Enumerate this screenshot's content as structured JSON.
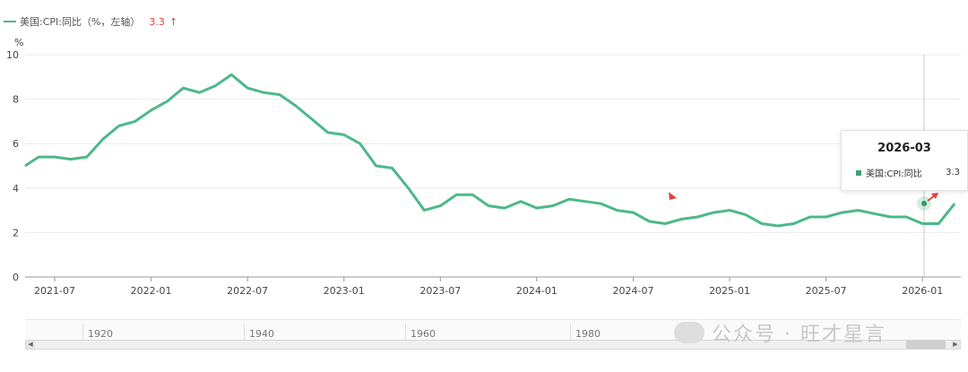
{
  "legend": {
    "series_name": "美国:CPI:同比（%，左轴）",
    "last_value": "3.3",
    "trend_symbol": "↑"
  },
  "unit_label": "%",
  "tooltip": {
    "date": "2026-03",
    "series_name": "美国:CPI:同比",
    "value": "3.3"
  },
  "navigator": {
    "labels": [
      "1920",
      "1940",
      "1960",
      "1980"
    ]
  },
  "watermark": "公众号 · 旺才星言",
  "colors": {
    "line": "#4cb88a",
    "up_arrow": "#e0443e",
    "grid": "#ebebeb"
  },
  "chart_data": {
    "type": "line",
    "ylim": [
      0,
      10
    ],
    "y_ticks": [
      0,
      2,
      4,
      6,
      8,
      10
    ],
    "x_tick_labels": [
      "2021-07",
      "2022-01",
      "2022-07",
      "2023-01",
      "2023-07",
      "2024-01",
      "2024-07",
      "2025-01",
      "2025-07",
      "2026-01"
    ],
    "series": [
      {
        "name": "美国:CPI:同比",
        "x": [
          "2021-05",
          "2021-06",
          "2021-07",
          "2021-08",
          "2021-09",
          "2021-10",
          "2021-11",
          "2021-12",
          "2022-01",
          "2022-02",
          "2022-03",
          "2022-04",
          "2022-05",
          "2022-06",
          "2022-07",
          "2022-08",
          "2022-09",
          "2022-10",
          "2022-11",
          "2022-12",
          "2023-01",
          "2023-02",
          "2023-03",
          "2023-04",
          "2023-05",
          "2023-06",
          "2023-07",
          "2023-08",
          "2023-09",
          "2023-10",
          "2023-11",
          "2023-12",
          "2024-01",
          "2024-02",
          "2024-03",
          "2024-04",
          "2024-05",
          "2024-06",
          "2024-07",
          "2024-08",
          "2024-09",
          "2024-10",
          "2024-11",
          "2024-12",
          "2025-01",
          "2025-02",
          "2025-03",
          "2025-04",
          "2025-05",
          "2025-06",
          "2025-07",
          "2025-08",
          "2025-09",
          "2025-10",
          "2025-11",
          "2025-12",
          "2026-01",
          "2026-02",
          "2026-03"
        ],
        "values": [
          5.0,
          5.4,
          5.4,
          5.3,
          5.4,
          6.2,
          6.8,
          7.0,
          7.5,
          7.9,
          8.5,
          8.3,
          8.6,
          9.1,
          8.5,
          8.3,
          8.2,
          7.7,
          7.1,
          6.5,
          6.4,
          6.0,
          5.0,
          4.9,
          4.0,
          3.0,
          3.2,
          3.7,
          3.7,
          3.2,
          3.1,
          3.4,
          3.1,
          3.2,
          3.5,
          3.4,
          3.3,
          3.0,
          2.9,
          2.5,
          2.4,
          2.6,
          2.7,
          2.9,
          3.0,
          2.8,
          2.4,
          2.3,
          2.4,
          2.7,
          2.7,
          2.9,
          3.0,
          2.85,
          2.7,
          2.7,
          2.4,
          2.4,
          3.3
        ]
      }
    ]
  }
}
